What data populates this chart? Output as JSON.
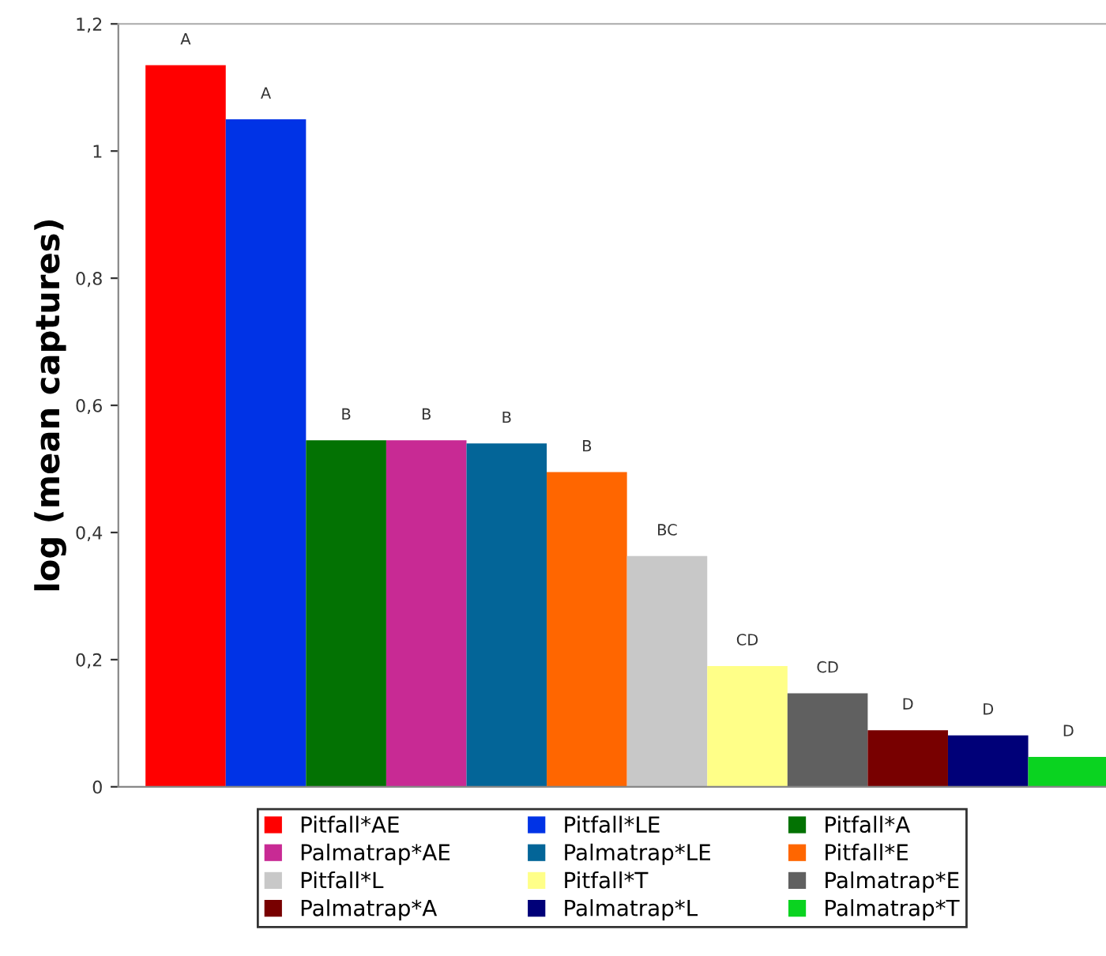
{
  "chart_data": {
    "type": "bar",
    "ylabel": "log (mean captures)",
    "categories": [
      null
    ],
    "series": [
      {
        "name": "Pitfall*AE",
        "color": "#ff0000",
        "values": [
          1.135
        ]
      },
      {
        "name": "Pitfall*LE",
        "color": "#0033e6",
        "values": [
          1.05
        ]
      },
      {
        "name": "Pitfall*A",
        "color": "#037203",
        "values": [
          0.545
        ]
      },
      {
        "name": "Palmatrap*AE",
        "color": "#c82a94",
        "values": [
          0.545
        ]
      },
      {
        "name": "Palmatrap*LE",
        "color": "#036598",
        "values": [
          0.54
        ]
      },
      {
        "name": "Pitfall*E",
        "color": "#ff6600",
        "values": [
          0.495
        ]
      },
      {
        "name": "Pitfall*L",
        "color": "#c8c8c8",
        "values": [
          0.363
        ]
      },
      {
        "name": "Pitfall*T",
        "color": "#ffff88",
        "values": [
          0.19
        ]
      },
      {
        "name": "Palmatrap*E",
        "color": "#606060",
        "values": [
          0.147
        ]
      },
      {
        "name": "Palmatrap*A",
        "color": "#780000",
        "values": [
          0.089
        ]
      },
      {
        "name": "Palmatrap*L",
        "color": "#000078",
        "values": [
          0.081
        ]
      },
      {
        "name": "Palmatrap*T",
        "color": "#0ad320",
        "values": [
          0.047
        ]
      }
    ],
    "annotations": [
      {
        "text": "A",
        "y": 1.135
      },
      {
        "text": "A",
        "y": 1.05
      },
      {
        "text": "B",
        "y": 0.545
      },
      {
        "text": "B",
        "y": 0.545
      },
      {
        "text": "B",
        "y": 0.54
      },
      {
        "text": "B",
        "y": 0.495
      },
      {
        "text": "BC",
        "y": 0.363
      },
      {
        "text": "CD",
        "y": 0.19
      },
      {
        "text": "CD",
        "y": 0.147
      },
      {
        "text": "D",
        "y": 0.089
      },
      {
        "text": "D",
        "y": 0.081
      },
      {
        "text": "D",
        "y": 0.047
      }
    ],
    "ylim": [
      0,
      1.2
    ],
    "yticks": [
      0,
      {
        "value": 0.2,
        "label": "0,2"
      },
      {
        "value": 0.4,
        "label": "0,4"
      },
      {
        "value": 0.6,
        "label": "0,6"
      },
      {
        "value": 0.8,
        "label": "0,8"
      },
      1,
      {
        "value": 1.2,
        "label": "1,2"
      }
    ],
    "grid": false,
    "legend": "bottom"
  }
}
